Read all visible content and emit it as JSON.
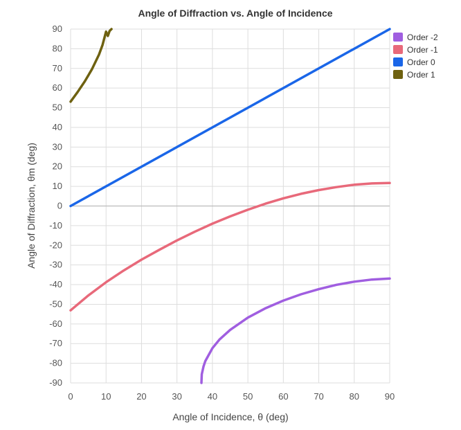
{
  "chart_data": {
    "type": "line",
    "title": "Angle of Diffraction vs. Angle of Incidence",
    "xlabel": "Angle of Incidence, θ (deg)",
    "ylabel": "Angle of Diffraction, θm (deg)",
    "xlim": [
      0,
      90
    ],
    "ylim": [
      -90,
      90
    ],
    "x_ticks": [
      0,
      10,
      20,
      30,
      40,
      50,
      60,
      70,
      80,
      90
    ],
    "y_ticks": [
      90,
      80,
      70,
      60,
      50,
      40,
      30,
      20,
      10,
      0,
      -10,
      -20,
      -30,
      -40,
      -50,
      -60,
      -70,
      -80,
      -90
    ],
    "grid": true,
    "legend_position": "right",
    "series": [
      {
        "name": "Order -2",
        "color": "#a05ee0",
        "x": [
          36.9,
          37.0,
          37.5,
          38,
          40,
          42,
          45,
          50,
          55,
          60,
          65,
          70,
          75,
          80,
          85,
          90
        ],
        "y": [
          -90,
          -85.6,
          -81.5,
          -78.9,
          -72.3,
          -67.9,
          -63.0,
          -56.8,
          -52.0,
          -48.1,
          -44.9,
          -42.3,
          -40.1,
          -38.5,
          -37.4,
          -36.9
        ]
      },
      {
        "name": "Order -1",
        "color": "#e8697a",
        "x": [
          0,
          5,
          10,
          15,
          20,
          25,
          30,
          35,
          40,
          45,
          50,
          55,
          60,
          65,
          70,
          75,
          80,
          85,
          90
        ],
        "y": [
          -53.1,
          -45.5,
          -38.8,
          -32.8,
          -27.3,
          -22.3,
          -17.5,
          -13.1,
          -9.0,
          -5.3,
          -1.9,
          1.2,
          3.9,
          6.2,
          8.1,
          9.6,
          10.8,
          11.5,
          11.7
        ]
      },
      {
        "name": "Order 0",
        "color": "#1a66e8",
        "x": [
          0,
          90
        ],
        "y": [
          0,
          90
        ]
      },
      {
        "name": "Order 1",
        "color": "#6e6110",
        "x": [
          0,
          2,
          4,
          6,
          8,
          9,
          10,
          10.5,
          11,
          11.3,
          11.54
        ],
        "y": [
          53.1,
          58.0,
          63.4,
          69.5,
          77.0,
          81.9,
          88.7,
          86.5,
          89.0,
          89.6,
          90
        ]
      }
    ]
  }
}
